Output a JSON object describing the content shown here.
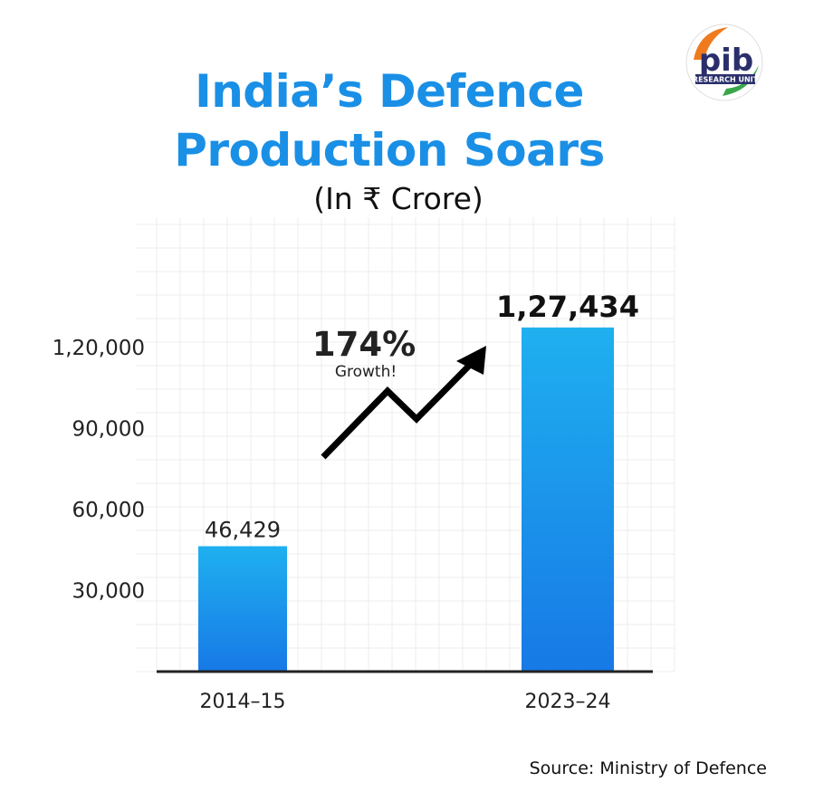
{
  "title_line1": "India’s Defence",
  "title_line2": "Production Soars",
  "subtitle": "(In ₹ Crore)",
  "source": "Source: Ministry of Defence",
  "logo": {
    "text": "pib",
    "band_text": "RESEARCH UNIT"
  },
  "callout": {
    "value": "174%",
    "label": "Growth!"
  },
  "colors": {
    "title": "#1a8fe6",
    "bar_top": "#1fb0ef",
    "bar_bottom": "#1779e6",
    "axis": "#222222",
    "grid": "#e9e9e9"
  },
  "chart_data": {
    "type": "bar",
    "title": "India’s Defence Production Soars",
    "subtitle": "(In ₹ Crore)",
    "categories": [
      "2014–15",
      "2023–24"
    ],
    "values": [
      46429,
      127434
    ],
    "data_labels": [
      "46,429",
      "1,27,434"
    ],
    "yticks": [
      30000,
      60000,
      90000,
      120000
    ],
    "ytick_labels": [
      "30,000",
      "60,000",
      "90,000",
      "1,20,000"
    ],
    "ylim": [
      0,
      135000
    ],
    "grid": true,
    "annotation": "174% Growth!"
  }
}
